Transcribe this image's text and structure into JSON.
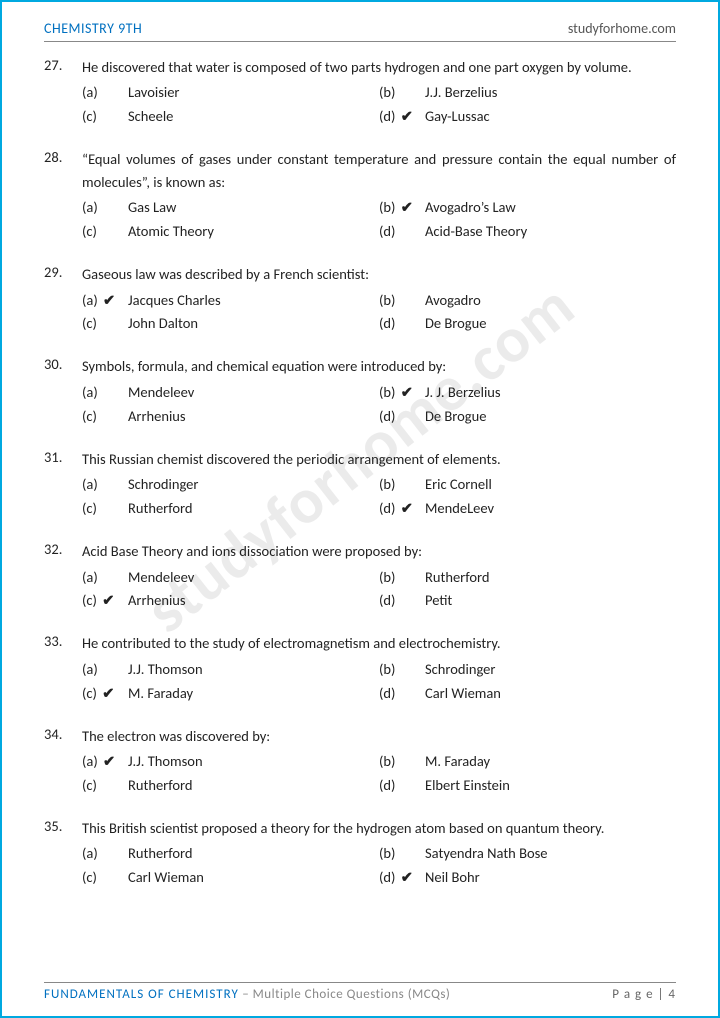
{
  "header": {
    "left": "CHEMISTRY 9TH",
    "right": "studyforhome.com"
  },
  "watermark": "studyforhome.com",
  "footer": {
    "title1": "FUNDAMENTALS OF CHEMISTRY",
    "title2": " – Multiple Choice Questions (MCQs)",
    "page_label": "P a g e  | 4"
  },
  "tick_glyph": "✔",
  "questions": [
    {
      "num": "27.",
      "stem": "He discovered that water is composed of two parts hydrogen and one part oxygen by volume.",
      "opts": [
        {
          "l": "(a)",
          "t": "Lavoisier",
          "c": false
        },
        {
          "l": "(b)",
          "t": "J.J. Berzelius",
          "c": false
        },
        {
          "l": "(c)",
          "t": "Scheele",
          "c": false
        },
        {
          "l": "(d)",
          "t": "Gay-Lussac",
          "c": true
        }
      ]
    },
    {
      "num": "28.",
      "stem": "“Equal volumes of gases under constant temperature and pressure contain the equal number of molecules”, is known as:",
      "opts": [
        {
          "l": "(a)",
          "t": "Gas Law",
          "c": false
        },
        {
          "l": "(b)",
          "t": "Avogadro’s Law",
          "c": true
        },
        {
          "l": "(c)",
          "t": "Atomic Theory",
          "c": false
        },
        {
          "l": "(d)",
          "t": "Acid-Base Theory",
          "c": false
        }
      ]
    },
    {
      "num": "29.",
      "stem": "Gaseous law was described by a French scientist:",
      "opts": [
        {
          "l": "(a)",
          "t": "Jacques Charles",
          "c": true
        },
        {
          "l": "(b)",
          "t": "Avogadro",
          "c": false
        },
        {
          "l": "(c)",
          "t": "John Dalton",
          "c": false
        },
        {
          "l": "(d)",
          "t": "De Brogue",
          "c": false
        }
      ]
    },
    {
      "num": "30.",
      "stem": "Symbols, formula, and chemical equation were introduced by:",
      "opts": [
        {
          "l": "(a)",
          "t": "Mendeleev",
          "c": false
        },
        {
          "l": "(b)",
          "t": "J. J. Berzelius",
          "c": true
        },
        {
          "l": "(c)",
          "t": "Arrhenius",
          "c": false
        },
        {
          "l": "(d)",
          "t": "De Brogue",
          "c": false
        }
      ]
    },
    {
      "num": "31.",
      "stem": "This Russian chemist discovered the periodic arrangement of elements.",
      "opts": [
        {
          "l": "(a)",
          "t": "Schrodinger",
          "c": false
        },
        {
          "l": "(b)",
          "t": "Eric Cornell",
          "c": false
        },
        {
          "l": "(c)",
          "t": "Rutherford",
          "c": false
        },
        {
          "l": "(d)",
          "t": "MendeLeev",
          "c": true
        }
      ]
    },
    {
      "num": "32.",
      "stem": "Acid Base Theory and ions dissociation were proposed by:",
      "opts": [
        {
          "l": "(a)",
          "t": "Mendeleev",
          "c": false
        },
        {
          "l": "(b)",
          "t": "Rutherford",
          "c": false
        },
        {
          "l": "(c)",
          "t": "Arrhenius",
          "c": true
        },
        {
          "l": "(d)",
          "t": "Petit",
          "c": false
        }
      ]
    },
    {
      "num": "33.",
      "stem": "He contributed to the study of electromagnetism and electrochemistry.",
      "opts": [
        {
          "l": "(a)",
          "t": "J.J. Thomson",
          "c": false
        },
        {
          "l": "(b)",
          "t": "Schrodinger",
          "c": false
        },
        {
          "l": "(c)",
          "t": "M. Faraday",
          "c": true
        },
        {
          "l": "(d)",
          "t": "Carl Wieman",
          "c": false
        }
      ]
    },
    {
      "num": "34.",
      "stem": "The electron was discovered by:",
      "opts": [
        {
          "l": "(a)",
          "t": "J.J. Thomson",
          "c": true
        },
        {
          "l": "(b)",
          "t": "M. Faraday",
          "c": false
        },
        {
          "l": "(c)",
          "t": "Rutherford",
          "c": false
        },
        {
          "l": "(d)",
          "t": "Elbert Einstein",
          "c": false
        }
      ]
    },
    {
      "num": "35.",
      "stem": "This British scientist proposed a theory for the hydrogen atom based on quantum theory.",
      "opts": [
        {
          "l": "(a)",
          "t": "Rutherford",
          "c": false
        },
        {
          "l": "(b)",
          "t": "Satyendra Nath Bose",
          "c": false
        },
        {
          "l": "(c)",
          "t": "Carl Wieman",
          "c": false
        },
        {
          "l": "(d)",
          "t": "Neil Bohr",
          "c": true
        }
      ]
    }
  ]
}
